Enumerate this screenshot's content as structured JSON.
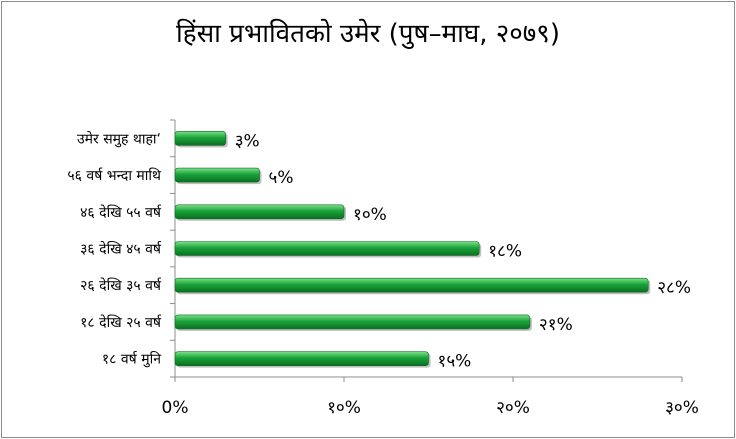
{
  "chart_data": {
    "type": "bar",
    "orientation": "horizontal",
    "title": "हिंसा प्रभावितको उमेर (पुष–माघ, २०७९)",
    "categories": [
      "उमेर समुह थाहा‘",
      "५६ वर्ष भन्दा माथि",
      "४६ देखि ५५ वर्ष",
      "३६ देखि ४५ वर्ष",
      "२६ देखि ३५ वर्ष",
      "१८ देखि २५ वर्ष",
      "१८ वर्ष मुनि"
    ],
    "values": [
      3,
      5,
      10,
      18,
      28,
      21,
      15
    ],
    "value_labels": [
      "३%",
      "५%",
      "१०%",
      "१८%",
      "२८%",
      "२१%",
      "१५%"
    ],
    "xlim": [
      0,
      30
    ],
    "x_ticks": [
      0,
      10,
      20,
      30
    ],
    "x_tick_labels": [
      "0%",
      "१०%",
      "२०%",
      "३०%"
    ],
    "xlabel": "",
    "ylabel": "",
    "grid": false,
    "legend": "none",
    "bar_color": "#1aa33a",
    "bar_highlight": "#7ee08a",
    "bar_shadow": "#0b6e22"
  }
}
